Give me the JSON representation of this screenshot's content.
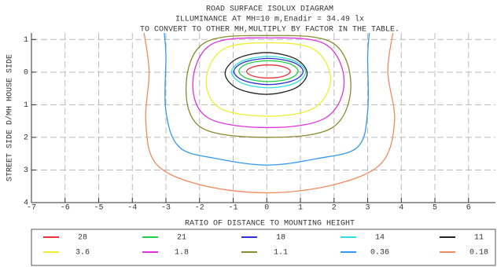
{
  "chart_data": {
    "type": "contour",
    "title": "ROAD SURFACE ISOLUX DIAGRAM",
    "subtitle": "ILLUMINANCE AT MH=10 m,Enadir  = 34.49 lx",
    "note": "TO CONVERT TO OTHER MH,MULTIPLY BY FACTOR IN THE TABLE.",
    "x_label": "RATIO OF DISTANCE TO MOUNTING HEIGHT",
    "y_label": "STREET SIDE  D/MH  HOUSE SIDE",
    "xlim": [
      -7,
      6.8
    ],
    "ylim": [
      -4,
      1.2
    ],
    "xticks": [
      -7,
      -6,
      -5,
      -4,
      -3,
      -2,
      -1,
      0,
      1,
      2,
      3,
      4,
      5,
      6
    ],
    "yticks": [
      1,
      0,
      {
        "value": -1,
        "label": "1"
      },
      {
        "value": -2,
        "label": "2"
      },
      {
        "value": -3,
        "label": "3"
      },
      {
        "value": -4,
        "label": "4"
      }
    ],
    "grid": true,
    "series": [
      {
        "name": "28",
        "color": "#e8303a",
        "closed": true,
        "x": [
          0.7,
          0.51,
          0.05,
          -0.41,
          -0.6,
          -0.41,
          0.05,
          0.51
        ],
        "y": [
          0.02,
          0.16,
          0.22,
          0.16,
          0.02,
          -0.12,
          -0.18,
          -0.12
        ]
      },
      {
        "name": "21",
        "color": "#22cc44",
        "closed": true,
        "x": [
          0.93,
          0.67,
          0.05,
          -0.57,
          -0.83,
          -0.57,
          0.05,
          0.67
        ],
        "y": [
          0.03,
          0.26,
          0.35,
          0.26,
          0.03,
          -0.2,
          -0.29,
          -0.2
        ]
      },
      {
        "name": "18",
        "color": "#3030d0",
        "closed": true,
        "x": [
          1.08,
          0.78,
          0.05,
          -0.68,
          -0.98,
          -0.68,
          0.05,
          0.78
        ],
        "y": [
          0.02,
          0.3,
          0.42,
          0.3,
          0.02,
          -0.26,
          -0.38,
          -0.26
        ]
      },
      {
        "name": "14",
        "color": "#33dddd",
        "closed": true,
        "x": [
          1.15,
          0.83,
          0.05,
          -0.73,
          -1.05,
          -0.73,
          0.05,
          0.83
        ],
        "y": [
          0,
          0.34,
          0.48,
          0.34,
          0,
          -0.34,
          -0.48,
          -0.34
        ]
      },
      {
        "name": "11",
        "color": "#222222",
        "closed": true,
        "x": [
          1.2,
          0.85,
          -0.02,
          -0.89,
          -1.24,
          -0.89,
          -0.02,
          0.85
        ],
        "y": [
          -0.04,
          0.41,
          0.6,
          0.41,
          -0.04,
          -0.49,
          -0.68,
          -0.49
        ]
      },
      {
        "name": "3.6",
        "color": "#eeee33",
        "closed": true,
        "x": [
          1.9,
          1.4,
          0.05,
          -1.3,
          -1.8,
          -1.4,
          0.05,
          1.4
        ],
        "y": [
          -0.22,
          0.7,
          0.9,
          0.7,
          -0.22,
          -1.1,
          -1.35,
          -1.1
        ]
      },
      {
        "name": "1.8",
        "color": "#dd33dd",
        "closed": true,
        "x": [
          2.3,
          1.75,
          0.05,
          -1.65,
          -2.2,
          -1.75,
          0.05,
          1.75
        ],
        "y": [
          -0.3,
          0.85,
          1.05,
          0.85,
          -0.3,
          -1.4,
          -1.7,
          -1.4
        ]
      },
      {
        "name": "1.1",
        "color": "#8a8a30",
        "closed": true,
        "x": [
          2.5,
          1.95,
          0.05,
          -1.85,
          -2.4,
          -1.95,
          0.05,
          1.95
        ],
        "y": [
          -0.4,
          0.9,
          1.12,
          0.9,
          -0.4,
          -1.7,
          -2.0,
          -1.7
        ]
      },
      {
        "name": "0.36",
        "color": "#3399ee",
        "closed": false,
        "x": [
          -3.05,
          -3.0,
          -3.0,
          -2.6,
          -1.5,
          0,
          1.5,
          2.7,
          3.0,
          3.0,
          3.05
        ],
        "y": [
          1.2,
          0.5,
          -1.2,
          -2.3,
          -2.65,
          -2.85,
          -2.65,
          -2.3,
          -1.2,
          0.5,
          1.2
        ]
      },
      {
        "name": "0.18",
        "color": "#f08a60",
        "closed": false,
        "x": [
          -3.65,
          -3.5,
          -3.6,
          -3.3,
          -2,
          0,
          2,
          3.4,
          3.8,
          3.6,
          3.75
        ],
        "y": [
          1.2,
          0,
          -1.5,
          -2.8,
          -3.45,
          -3.7,
          -3.45,
          -2.8,
          -1.5,
          0,
          1.2
        ]
      }
    ]
  }
}
